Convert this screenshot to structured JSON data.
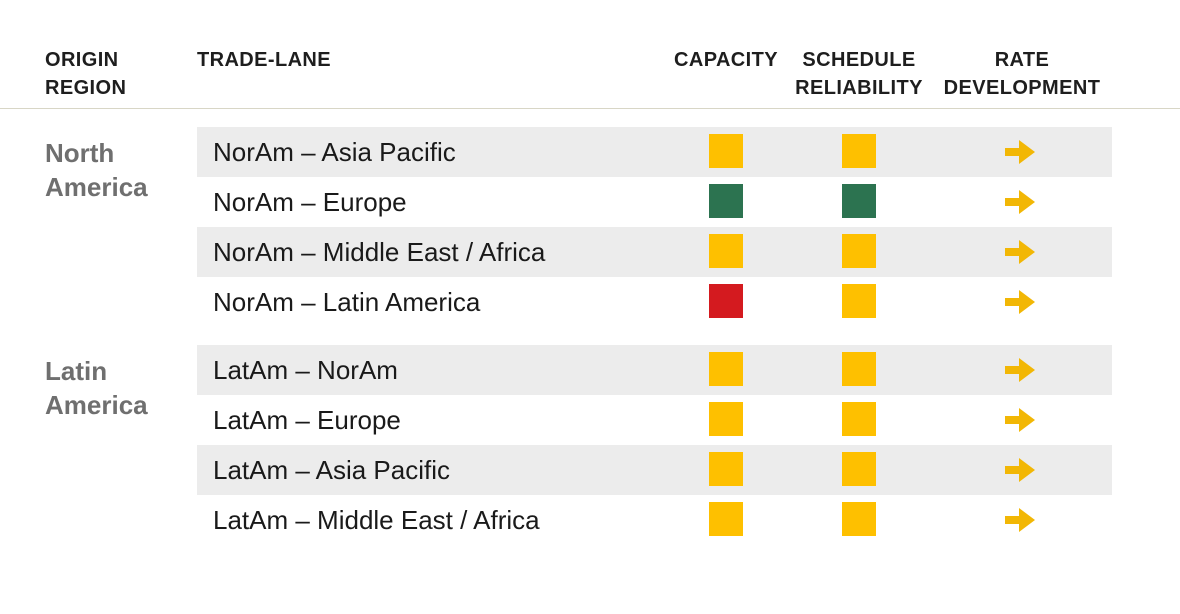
{
  "headers": {
    "origin_region": "ORIGIN\nREGION",
    "trade_lane": "TRADE-LANE",
    "capacity": "CAPACITY",
    "schedule_reliability": "SCHEDULE\nRELIABILITY",
    "rate_development": "RATE\nDEVELOPMENT"
  },
  "colors": {
    "yellow": "#fec000",
    "green": "#2c7350",
    "red": "#d41a1f",
    "arrow": "#f2b705",
    "row_shade": "#ececec",
    "region_text": "#6f6f6f"
  },
  "regions": [
    {
      "name": "North\nAmerica",
      "lanes": [
        {
          "name": "NorAm – Asia Pacific",
          "capacity": "yellow",
          "schedule_reliability": "yellow",
          "rate_development": "arrow-right-icon"
        },
        {
          "name": "NorAm – Europe",
          "capacity": "green",
          "schedule_reliability": "green",
          "rate_development": "arrow-right-icon"
        },
        {
          "name": "NorAm – Middle East / Africa",
          "capacity": "yellow",
          "schedule_reliability": "yellow",
          "rate_development": "arrow-right-icon"
        },
        {
          "name": "NorAm – Latin America",
          "capacity": "red",
          "schedule_reliability": "yellow",
          "rate_development": "arrow-right-icon"
        }
      ]
    },
    {
      "name": "Latin\nAmerica",
      "lanes": [
        {
          "name": "LatAm – NorAm",
          "capacity": "yellow",
          "schedule_reliability": "yellow",
          "rate_development": "arrow-right-icon"
        },
        {
          "name": "LatAm – Europe",
          "capacity": "yellow",
          "schedule_reliability": "yellow",
          "rate_development": "arrow-right-icon"
        },
        {
          "name": "LatAm – Asia Pacific",
          "capacity": "yellow",
          "schedule_reliability": "yellow",
          "rate_development": "arrow-right-icon"
        },
        {
          "name": "LatAm – Middle East / Africa",
          "capacity": "yellow",
          "schedule_reliability": "yellow",
          "rate_development": "arrow-right-icon"
        }
      ]
    }
  ]
}
